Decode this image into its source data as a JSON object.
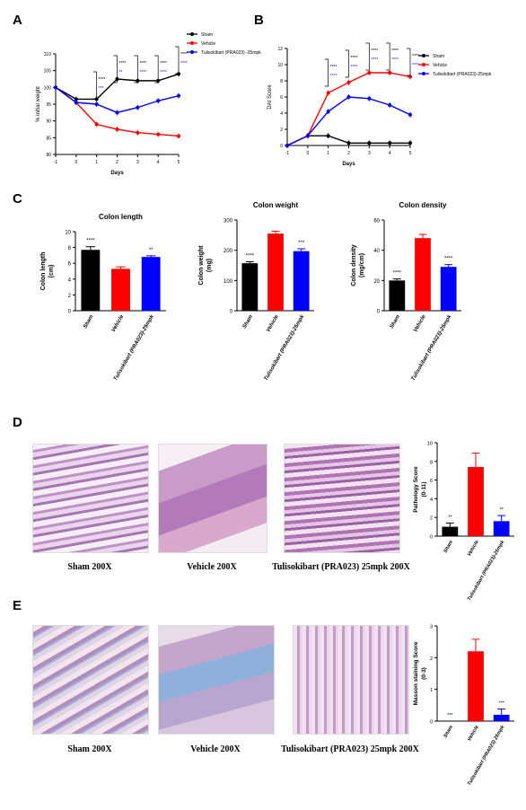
{
  "panel_labels": [
    "A",
    "B",
    "C",
    "D",
    "E"
  ],
  "colors": {
    "sham": "#000000",
    "vehicle": "#ff0000",
    "treat": "#0000ff",
    "stars": "#1d1dd0"
  },
  "charts": {
    "A": {
      "type": "line",
      "ylabel": "% initial weight",
      "xlabel": "Days",
      "x": [
        -1,
        0,
        1,
        2,
        3,
        4,
        5
      ],
      "xlim": [
        -1,
        5
      ],
      "ylim": [
        80,
        110
      ],
      "yticks": [
        80,
        85,
        90,
        95,
        100,
        105,
        110
      ],
      "series": [
        {
          "name": "Sham",
          "color": "#000000",
          "x": [
            -1,
            0,
            1,
            2,
            3,
            4,
            5
          ],
          "y": [
            100,
            96.5,
            96.5,
            102.5,
            102,
            102,
            104
          ]
        },
        {
          "name": "Vehicle",
          "color": "#ff0000",
          "x": [
            -1,
            0,
            1,
            2,
            3,
            4,
            5
          ],
          "y": [
            100,
            95.5,
            89,
            87.5,
            86.5,
            86,
            85.5
          ]
        },
        {
          "name": "Tulisokibart (PRA023) -25mpk",
          "color": "#0000ff",
          "x": [
            -1,
            0,
            1,
            2,
            3,
            4,
            5
          ],
          "y": [
            100,
            95.5,
            95,
            92.5,
            94,
            96,
            97.5
          ]
        }
      ],
      "annotations": [
        {
          "x": 1,
          "upper": "****",
          "lower": "***"
        },
        {
          "x": 2,
          "upper": "****",
          "lower": "**"
        },
        {
          "x": 3,
          "upper": "****",
          "lower": "****"
        },
        {
          "x": 4,
          "upper": "****",
          "lower": "****"
        },
        {
          "x": 5,
          "upper": "****",
          "lower": "****"
        }
      ]
    },
    "B": {
      "type": "line",
      "ylabel": "DAI Score",
      "xlabel": "Days",
      "x": [
        -1,
        0,
        1,
        2,
        3,
        4,
        5
      ],
      "xlim": [
        -1,
        5
      ],
      "ylim": [
        0,
        12
      ],
      "yticks": [
        0,
        2,
        4,
        6,
        8,
        10,
        12
      ],
      "series": [
        {
          "name": "Sham",
          "color": "#000000",
          "x": [
            -1,
            0,
            1,
            2,
            3,
            4,
            5
          ],
          "y": [
            0,
            1.2,
            1.2,
            0.3,
            0.3,
            0.3,
            0.3
          ]
        },
        {
          "name": "Vehicle",
          "color": "#ff0000",
          "x": [
            -1,
            0,
            1,
            2,
            3,
            4,
            5
          ],
          "y": [
            0,
            1.2,
            6.5,
            7.8,
            9,
            9,
            8.5
          ]
        },
        {
          "name": "Tulisokibart (PRA023)-25mpk",
          "color": "#0000ff",
          "x": [
            -1,
            0,
            1,
            2,
            3,
            4,
            5
          ],
          "y": [
            0,
            1.2,
            4.2,
            6,
            5.8,
            5,
            3.8
          ]
        }
      ],
      "annotations": [
        {
          "x": 1,
          "upper": "****",
          "lower": "****"
        },
        {
          "x": 2,
          "upper": "****",
          "lower": "****"
        },
        {
          "x": 3,
          "upper": "****",
          "lower": "****"
        },
        {
          "x": 4,
          "upper": "****",
          "lower": "****"
        },
        {
          "x": 5,
          "upper": "****",
          "lower": "****"
        }
      ]
    },
    "C1": {
      "type": "bar",
      "title": "Colon length",
      "ylabel": "Colon length\n(cm)",
      "categories": [
        "Sham",
        "Vehicle",
        "Tulisokibart (PRA023)-25mpk"
      ],
      "values": [
        7.7,
        5.3,
        6.8
      ],
      "errors": [
        0.4,
        0.25,
        0.15
      ],
      "stars": [
        "****",
        "",
        "**"
      ],
      "ylim": [
        0,
        10
      ],
      "yticks": [
        0,
        2,
        4,
        6,
        8,
        10
      ]
    },
    "C2": {
      "type": "bar",
      "title": "Colon weight",
      "ylabel": "Colon weight\n(mg)",
      "categories": [
        "Sham",
        "Vehicle",
        "Tulisokibart (PRA023)-25mpk"
      ],
      "values": [
        157,
        255,
        197
      ],
      "errors": [
        5,
        8,
        8
      ],
      "stars": [
        "****",
        "",
        "***"
      ],
      "ylim": [
        0,
        300
      ],
      "yticks": [
        0,
        100,
        200,
        300
      ]
    },
    "C3": {
      "type": "bar",
      "title": "Colon density",
      "ylabel": "Colon density\n(mg/cm)",
      "categories": [
        "Sham",
        "Vehicle",
        "Tulisokibart (PRA023)-25mpk"
      ],
      "values": [
        20,
        48,
        29
      ],
      "errors": [
        1,
        2.5,
        1.5
      ],
      "stars": [
        "****",
        "",
        "****"
      ],
      "ylim": [
        0,
        60
      ],
      "yticks": [
        0,
        20,
        40,
        60
      ]
    },
    "D": {
      "type": "bar",
      "ylabel": "Pathology Score\n(0-11)",
      "categories": [
        "Sham",
        "Vehicle",
        "Tulisokibart (PRA023)-25mpk"
      ],
      "values": [
        1,
        7.4,
        1.6
      ],
      "errors": [
        0.4,
        1.5,
        0.6
      ],
      "stars": [
        "**",
        "",
        "**"
      ],
      "ylim": [
        0,
        10
      ],
      "yticks": [
        0,
        2,
        4,
        6,
        8,
        10
      ]
    },
    "E": {
      "type": "bar",
      "ylabel": "Masson staining Score\n(0-3)",
      "categories": [
        "Sham",
        "Vehicle",
        "Tulisokibart (PRA023) 25mpk"
      ],
      "values": [
        0,
        2.2,
        0.2
      ],
      "errors": [
        0,
        0.38,
        0.18
      ],
      "stars": [
        "***",
        "",
        "***"
      ],
      "ylim": [
        0,
        3
      ],
      "yticks": [
        0,
        1,
        2,
        3
      ]
    }
  },
  "captions": {
    "D": [
      "Sham 200X",
      "Vehicle 200X",
      "Tulisokibart (PRA023) 25mpk 200X"
    ],
    "E": [
      "Sham 200X",
      "Vehicle 200X",
      "Tulisokibart (PRA023) 25mpk 200X"
    ]
  }
}
